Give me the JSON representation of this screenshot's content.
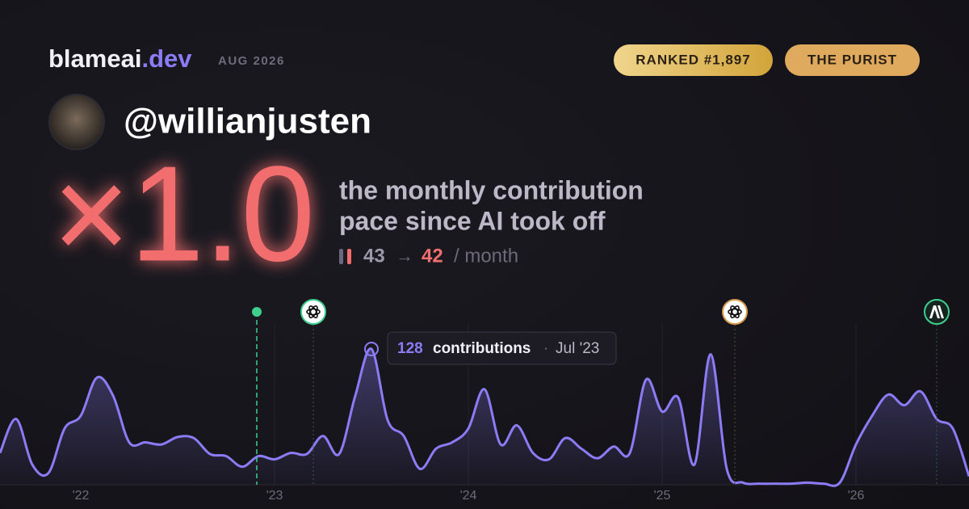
{
  "header": {
    "brand": "blameai",
    "brand_tld": ".dev",
    "period": "AUG 2026",
    "badges": [
      "RANKED #1,897",
      "THE PURIST"
    ],
    "handle": "@willianjusten"
  },
  "hero": {
    "multiplier": "×1.0",
    "description": [
      "the monthly contribution",
      "pace since AI took off"
    ],
    "before": "43",
    "arrow": "→",
    "after": "42",
    "unit": "/ month"
  },
  "tooltip": {
    "label": "contributions",
    "separator": "·",
    "date": "Jul '23"
  },
  "chart_data": {
    "type": "area",
    "color": "#8b7cf6",
    "ylim": [
      0,
      150
    ],
    "categories": [
      null,
      null,
      null,
      null,
      null,
      "'22",
      null,
      null,
      null,
      null,
      null,
      null,
      null,
      null,
      null,
      null,
      null,
      "'23",
      null,
      null,
      null,
      null,
      null,
      null,
      null,
      null,
      null,
      null,
      null,
      "'24",
      null,
      null,
      null,
      null,
      null,
      null,
      null,
      null,
      null,
      null,
      null,
      "'25",
      null,
      null,
      null,
      null,
      null,
      null,
      null,
      null,
      null,
      null,
      null,
      "'26",
      null,
      null,
      null,
      null,
      null,
      null,
      null
    ],
    "values": [
      30,
      62,
      19,
      11,
      53,
      65,
      101,
      84,
      40,
      40,
      38,
      45,
      44,
      29,
      27,
      17,
      27,
      24,
      30,
      29,
      46,
      29,
      84,
      128,
      61,
      46,
      15,
      34,
      40,
      53,
      90,
      38,
      56,
      30,
      24,
      44,
      34,
      25,
      36,
      30,
      99,
      69,
      82,
      19,
      123,
      15,
      2,
      1,
      1,
      1,
      2,
      1,
      2,
      38,
      65,
      85,
      75,
      88,
      62,
      53,
      8
    ]
  }
}
